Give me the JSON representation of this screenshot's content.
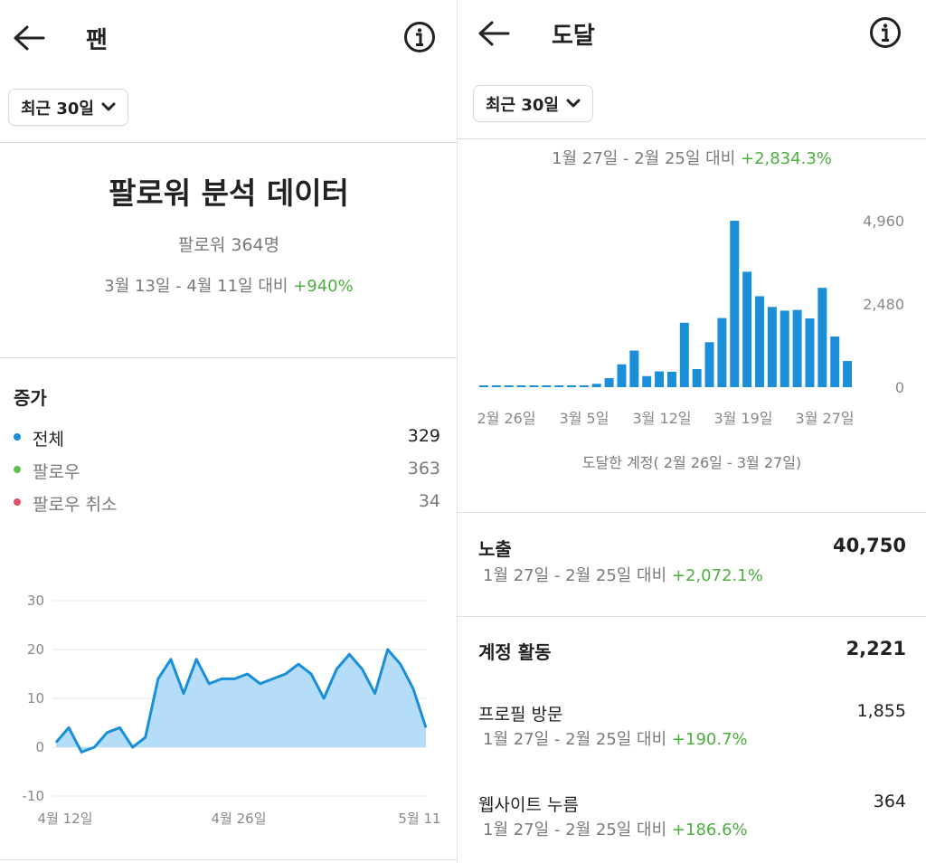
{
  "left": {
    "title": "팬",
    "period_label": "최근 30일",
    "heading": "팔로워 분석 데이터",
    "followers": "팔로워 364명",
    "compare_range": "3월 13일 -  4월 11일 대비",
    "compare_change": "+940%",
    "growth_title": "증가",
    "legend": [
      {
        "label": "전체",
        "value": "329",
        "color": "#1a8fd8"
      },
      {
        "label": "팔로우",
        "value": "363",
        "color": "#5cc04a"
      },
      {
        "label": "팔로우 취소",
        "value": "34",
        "color": "#e0506a"
      }
    ],
    "chart_data": {
      "type": "area",
      "title": "",
      "xlabel": "",
      "ylabel": "",
      "ylim": [
        -10,
        30
      ],
      "y_ticks": [
        "30",
        "20",
        "10",
        "0",
        "-10"
      ],
      "x_tick_labels": [
        "4월 12일",
        "4월 26일",
        "5월 11"
      ],
      "grid": true,
      "color": "#1a8fd8",
      "fill": "#b5dcf8",
      "values": [
        1,
        4,
        -1,
        0,
        3,
        4,
        0,
        2,
        14,
        18,
        11,
        18,
        13,
        14,
        14,
        15,
        13,
        14,
        15,
        17,
        15,
        10,
        16,
        19,
        16,
        11,
        20,
        17,
        12,
        4
      ]
    }
  },
  "right": {
    "title": "도달",
    "period_label": "최근 30일",
    "compare_range": "1월 27일 -  2월 25일 대비",
    "compare_change": "+2,834.3%",
    "chart_caption": "도달한 계정( 2월 26일 -  3월 27일)",
    "chart_data": {
      "type": "bar",
      "title": "",
      "xlabel": "",
      "ylabel": "",
      "ylim": [
        0,
        4960
      ],
      "y_ticks": [
        "4,960",
        "2,480",
        "0"
      ],
      "x_tick_labels": [
        "2월 26일",
        "3월 5일",
        "3월 12일",
        "3월 19일",
        "3월 27일"
      ],
      "color": "#1a8fd8",
      "values": [
        40,
        20,
        30,
        35,
        40,
        40,
        35,
        30,
        20,
        100,
        270,
        680,
        1090,
        330,
        470,
        460,
        1920,
        540,
        1340,
        2060,
        4960,
        3440,
        2710,
        2390,
        2280,
        2300,
        2050,
        2960,
        1510,
        780
      ]
    },
    "impressions": {
      "label": "노출",
      "value": "40,750",
      "compare_range": "1월 27일 -  2월 25일 대비",
      "change": "+2,072.1%"
    },
    "account_activity": {
      "label": "계정 활동",
      "value": "2,221"
    },
    "profile_visits": {
      "label": "프로필 방문",
      "value": "1,855",
      "compare_range": "1월 27일 -  2월 25일 대비",
      "change": "+190.7%"
    },
    "website_taps": {
      "label": "웹사이트 누름",
      "value": "364",
      "compare_range": "1월 27일 -  2월 25일 대비",
      "change": "+186.6%"
    }
  }
}
